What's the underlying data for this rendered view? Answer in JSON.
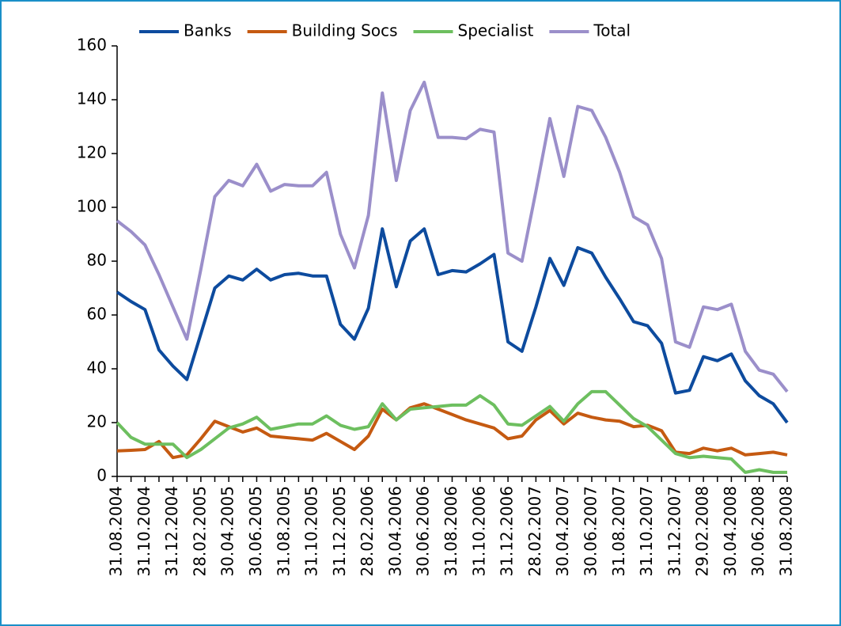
{
  "chart_data": {
    "type": "line",
    "categories": [
      "31.08.2004",
      null,
      "31.10.2004",
      null,
      "31.12.2004",
      null,
      "28.02.2005",
      null,
      "30.04.2005",
      null,
      "30.06.2005",
      null,
      "31.08.2005",
      null,
      "31.10.2005",
      null,
      "31.12.2005",
      null,
      "28.02.2006",
      null,
      "30.04.2006",
      null,
      "30.06.2006",
      null,
      "31.08.2006",
      null,
      "31.10.2006",
      null,
      "31.12.2006",
      null,
      "28.02.2007",
      null,
      "30.04.2007",
      null,
      "30.06.2007",
      null,
      "31.08.2007",
      null,
      "31.10.2007",
      null,
      "31.12.2007",
      null,
      "29.02.2008",
      null,
      "30.04.2008",
      null,
      "30.06.2008",
      null,
      "31.08.2008"
    ],
    "series": [
      {
        "name": "Banks",
        "color": "#0d4b9e",
        "values": [
          68.5,
          65,
          62,
          47,
          41,
          36,
          53,
          70,
          74.5,
          73,
          77,
          73,
          75,
          75.5,
          74.5,
          74.5,
          56.5,
          51,
          62.5,
          92,
          70.5,
          87.5,
          92,
          75,
          76.5,
          76,
          79,
          82.5,
          50,
          46.5,
          63,
          81,
          71,
          85,
          83,
          74,
          66,
          57.5,
          56,
          49.5,
          31,
          32,
          44.5,
          43,
          45.5,
          35.5,
          30,
          27,
          20
        ]
      },
      {
        "name": "Building Socs",
        "color": "#c55a11",
        "values": [
          9.5,
          9.7,
          10,
          13,
          7,
          8,
          14,
          20.5,
          18.5,
          16.5,
          18,
          15,
          14.5,
          14,
          13.5,
          16,
          13,
          10,
          15,
          25,
          21,
          25.5,
          27,
          25,
          23,
          21,
          19.5,
          18,
          14,
          15,
          21,
          24.5,
          19.5,
          23.5,
          22,
          21,
          20.5,
          18.5,
          19,
          17,
          9,
          8.5,
          10.5,
          9.5,
          10.5,
          8,
          8.5,
          9,
          8
        ]
      },
      {
        "name": "Specialist",
        "color": "#6dbf5f",
        "values": [
          20,
          14.5,
          12,
          12,
          12,
          7,
          10,
          14,
          18,
          19.5,
          22,
          17.5,
          18.5,
          19.5,
          19.5,
          22.5,
          19,
          17.5,
          18.5,
          27,
          21,
          25,
          25.5,
          26,
          26.5,
          26.5,
          30,
          26.5,
          19.5,
          19,
          22.5,
          26,
          20.5,
          27,
          31.5,
          31.5,
          26.5,
          21.5,
          18.5,
          13.5,
          8.5,
          7,
          7.5,
          7,
          6.5,
          1.5,
          2.5,
          1.5,
          1.5
        ]
      },
      {
        "name": "Total",
        "color": "#9b8fca",
        "values": [
          95,
          91,
          86,
          75,
          63,
          51,
          77,
          104,
          110,
          108,
          116,
          106,
          108.5,
          108,
          108,
          113,
          90,
          77.5,
          97,
          142.5,
          110,
          136,
          146.5,
          126,
          126,
          125.5,
          129,
          128,
          83,
          80,
          106,
          133,
          111.5,
          137.5,
          136,
          126,
          113,
          96.5,
          93.5,
          81,
          50,
          48,
          63,
          62,
          64,
          46.5,
          39.5,
          38,
          31.5
        ]
      }
    ],
    "ylim": [
      0,
      160
    ],
    "yticks": [
      0,
      20,
      40,
      60,
      80,
      100,
      120,
      140,
      160
    ],
    "grid": false,
    "legend": "top"
  }
}
